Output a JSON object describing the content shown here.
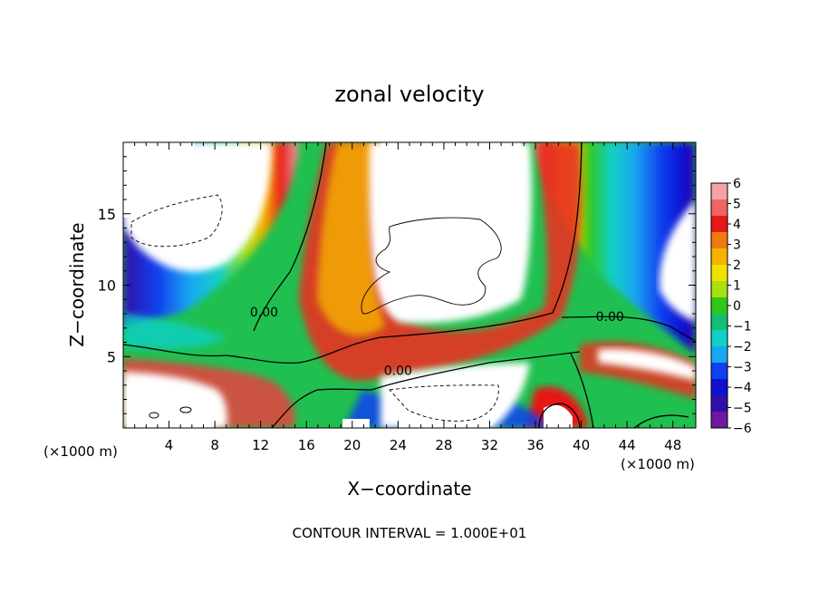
{
  "chart_data": {
    "type": "heatmap",
    "title": "zonal velocity",
    "xlabel": "X−coordinate",
    "ylabel": "Z−coordinate",
    "x_unit_left": "(×1000 m)",
    "x_unit_right": "(×1000 m)",
    "footer": "CONTOUR INTERVAL = 1.000E+01",
    "xlim": [
      0,
      50
    ],
    "ylim": [
      0,
      20
    ],
    "x_ticks": [
      4,
      8,
      12,
      16,
      20,
      24,
      28,
      32,
      36,
      40,
      44,
      48
    ],
    "y_ticks": [
      5,
      10,
      15
    ],
    "colorbar": {
      "labels": [
        "6",
        "5",
        "4",
        "3",
        "2",
        "1",
        "0",
        "−1",
        "−2",
        "−3",
        "−4",
        "−5",
        "−6"
      ],
      "range": [
        -6,
        6
      ],
      "colors": [
        "#f4a3a3",
        "#f06464",
        "#e81818",
        "#f07a10",
        "#f5b200",
        "#f0e000",
        "#a8e010",
        "#30c818",
        "#10c070",
        "#10d0c8",
        "#18a8f0",
        "#1040f0",
        "#1010d0",
        "#3010a8",
        "#7018a0"
      ]
    },
    "contour_labels": [
      {
        "text": "0.00",
        "x": 12.3,
        "y": 7.8
      },
      {
        "text": "0.00",
        "x": 24.0,
        "y": 3.7
      },
      {
        "text": "0.00",
        "x": 42.5,
        "y": 7.5
      }
    ]
  }
}
